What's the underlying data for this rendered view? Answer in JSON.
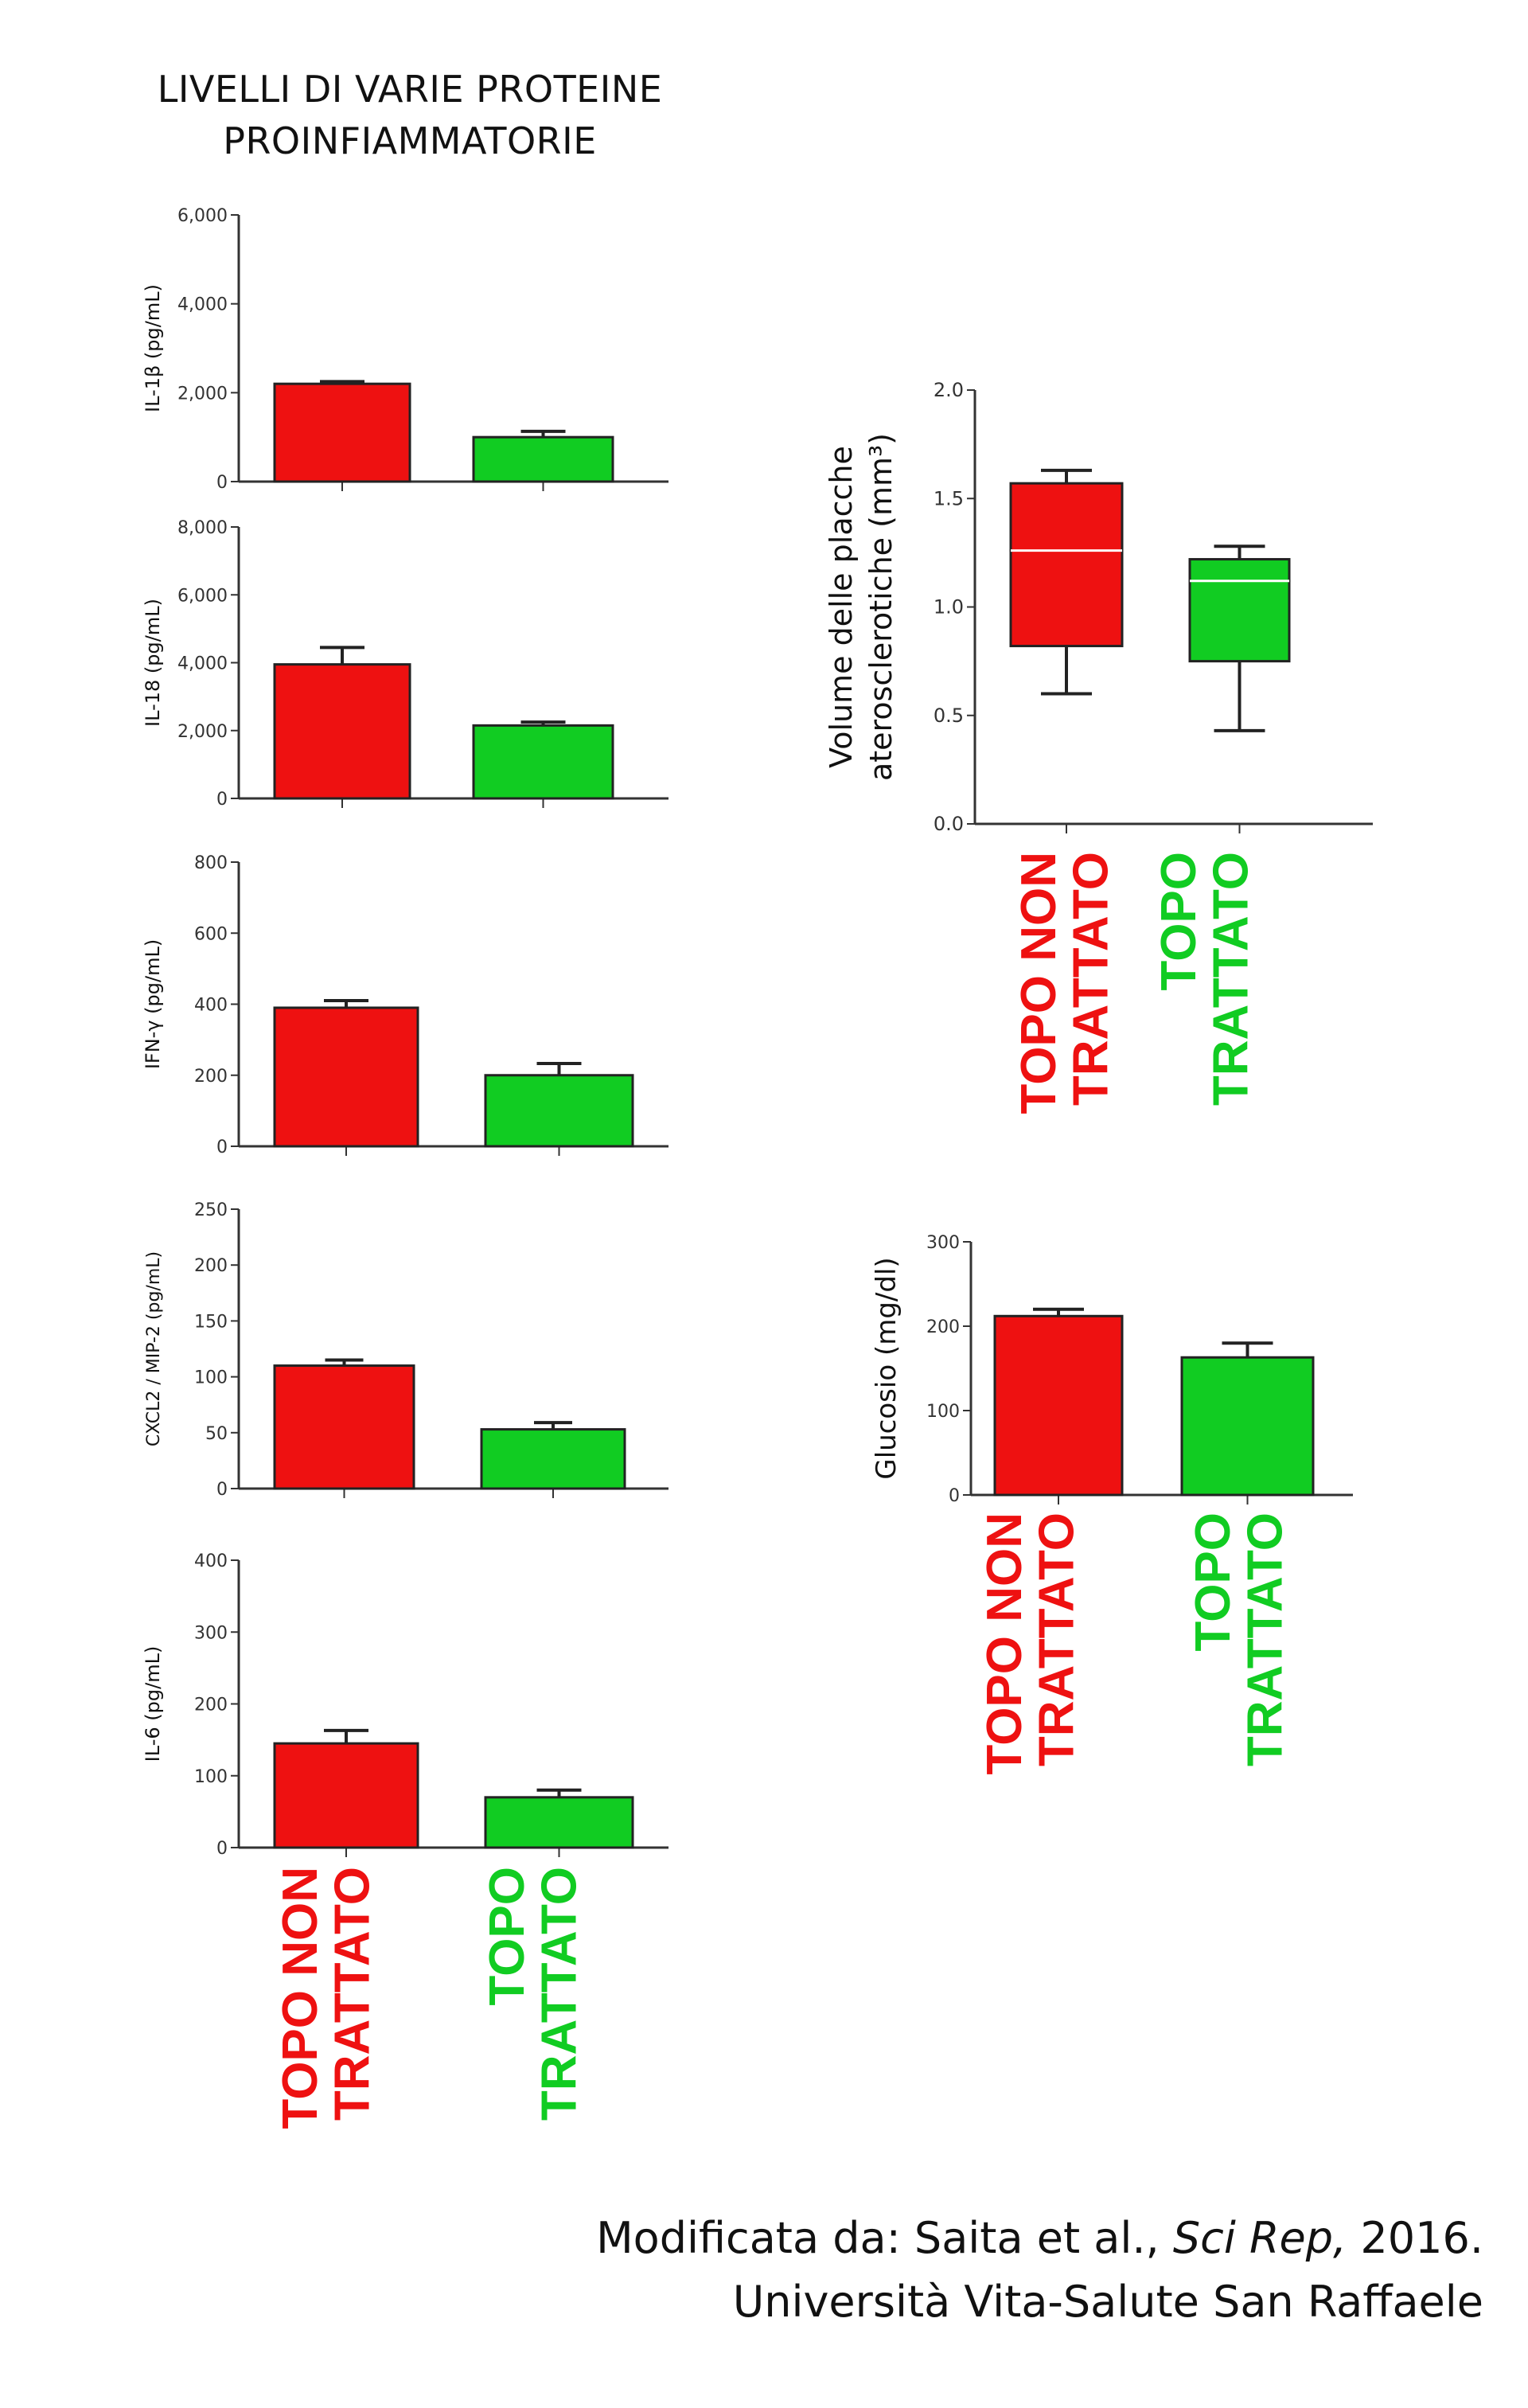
{
  "title": {
    "line1": "LIVELLI DI VARIE PROTEINE",
    "line2": "PROINFIAMMATORIE"
  },
  "groups": {
    "untreated": {
      "line1": "TOPO NON",
      "line2": "TRATTATO",
      "color": "#ee1111"
    },
    "treated": {
      "line1": "TOPO",
      "line2": "TRATTATO",
      "color": "#11cc22"
    }
  },
  "chart_data": [
    {
      "id": "il1b",
      "type": "bar",
      "ylabel": "IL-1β (pg/mL)",
      "categories": [
        "TOPO NON TRATTATO",
        "TOPO TRATTATO"
      ],
      "values": [
        2200,
        1000
      ],
      "errors": [
        50,
        130
      ],
      "ylim": [
        0,
        6000
      ],
      "yticks": [
        "0",
        "2,000",
        "4,000",
        "6,000"
      ]
    },
    {
      "id": "il18",
      "type": "bar",
      "ylabel": "IL-18 (pg/mL)",
      "categories": [
        "TOPO NON TRATTATO",
        "TOPO TRATTATO"
      ],
      "values": [
        3950,
        2150
      ],
      "errors": [
        500,
        100
      ],
      "ylim": [
        0,
        8000
      ],
      "yticks": [
        "0",
        "2,000",
        "4,000",
        "6,000",
        "8,000"
      ]
    },
    {
      "id": "ifng",
      "type": "bar",
      "ylabel": "IFN-γ (pg/mL)",
      "categories": [
        "TOPO NON TRATTATO",
        "TOPO TRATTATO"
      ],
      "values": [
        390,
        200
      ],
      "errors": [
        20,
        33
      ],
      "ylim": [
        0,
        800
      ],
      "yticks": [
        "0",
        "200",
        "400",
        "600",
        "800"
      ]
    },
    {
      "id": "cxcl2",
      "type": "bar",
      "ylabel": "CXCL2 / MIP-2 (pg/mL)",
      "categories": [
        "TOPO NON TRATTATO",
        "TOPO TRATTATO"
      ],
      "values": [
        110,
        53
      ],
      "errors": [
        5,
        6
      ],
      "ylim": [
        0,
        250
      ],
      "yticks": [
        "0",
        "50",
        "100",
        "150",
        "200",
        "250"
      ]
    },
    {
      "id": "il6",
      "type": "bar",
      "ylabel": "IL-6 (pg/mL)",
      "categories": [
        "TOPO NON TRATTATO",
        "TOPO TRATTATO"
      ],
      "values": [
        145,
        70
      ],
      "errors": [
        18,
        10
      ],
      "ylim": [
        0,
        400
      ],
      "yticks": [
        "0",
        "100",
        "200",
        "300",
        "400"
      ]
    },
    {
      "id": "plaque",
      "type": "box",
      "ylabel": "Volume delle placche aterosclerotiche (mm³)",
      "categories": [
        "TOPO NON TRATTATO",
        "TOPO TRATTATO"
      ],
      "boxes": [
        {
          "min": 0.6,
          "q1": 0.82,
          "median": 1.26,
          "q3": 1.57,
          "max": 1.63
        },
        {
          "min": 0.43,
          "q1": 0.75,
          "median": 1.12,
          "q3": 1.22,
          "max": 1.28
        }
      ],
      "ylim": [
        0,
        2.0
      ],
      "yticks": [
        "0.0",
        "0.5",
        "1.0",
        "1.5",
        "2.0"
      ]
    },
    {
      "id": "glucose",
      "type": "bar",
      "ylabel": "Glucosio (mg/dl)",
      "categories": [
        "TOPO NON TRATTATO",
        "TOPO TRATTATO"
      ],
      "values": [
        212,
        163
      ],
      "errors": [
        8,
        17
      ],
      "ylim": [
        0,
        300
      ],
      "yticks": [
        "0",
        "100",
        "200",
        "300"
      ]
    }
  ],
  "caption": {
    "line1_prefix": "Modificata da: Saita et al.,",
    "journal": "Sci Rep,",
    "year": "2016.",
    "line2": "Università Vita-Salute San Raffaele"
  }
}
